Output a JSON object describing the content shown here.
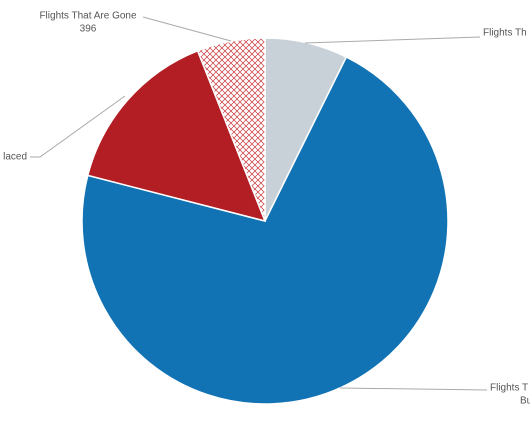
{
  "chart_data": {
    "type": "pie",
    "labels": [
      [
        "Flights Th"
      ],
      [
        "Flights T",
        "Bu"
      ],
      [
        "laced"
      ],
      [
        "Flights That Are Gone"
      ]
    ],
    "values": [
      484,
      4733,
      990,
      396
    ],
    "value_shown": [
      false,
      false,
      false,
      true
    ],
    "colors": [
      "#c8d0d8",
      "#1172b4",
      "#b31e24",
      "#c9343a"
    ],
    "patterns": [
      null,
      null,
      null,
      "crosshatch"
    ]
  }
}
